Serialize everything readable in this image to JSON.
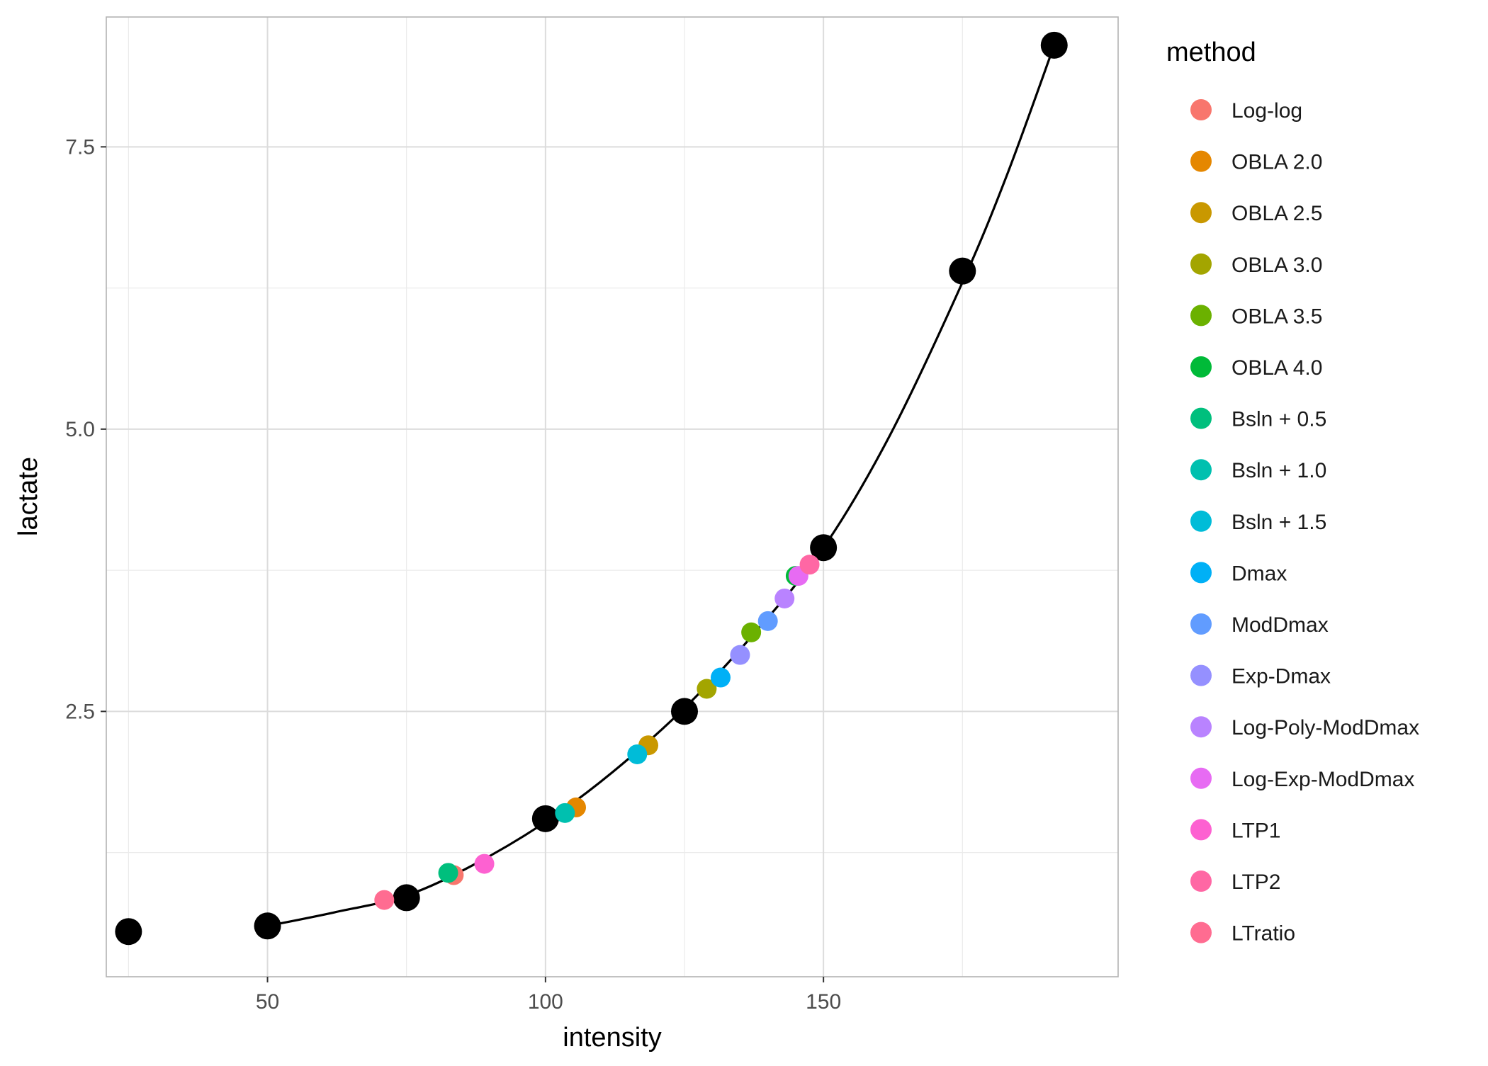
{
  "chart_data": {
    "type": "scatter",
    "xlabel": "intensity",
    "ylabel": "lactate",
    "xlim": [
      21,
      203
    ],
    "ylim": [
      0.15,
      8.65
    ],
    "x_ticks": [
      {
        "value": 50,
        "label": "50"
      },
      {
        "value": 100,
        "label": "100"
      },
      {
        "value": 150,
        "label": "150"
      }
    ],
    "y_ticks": [
      {
        "value": 2.5,
        "label": "2.5"
      },
      {
        "value": 5.0,
        "label": "5.0"
      },
      {
        "value": 7.5,
        "label": "7.5"
      }
    ],
    "grid": true,
    "legend_position": "right",
    "legend_title": "method",
    "observed": {
      "color": "#000000",
      "points": [
        {
          "x": 25,
          "y": 0.55
        },
        {
          "x": 50,
          "y": 0.6
        },
        {
          "x": 75,
          "y": 0.85
        },
        {
          "x": 100,
          "y": 1.55
        },
        {
          "x": 125,
          "y": 2.5
        },
        {
          "x": 150,
          "y": 3.95
        },
        {
          "x": 175,
          "y": 6.4
        },
        {
          "x": 191.5,
          "y": 8.4
        }
      ]
    },
    "fit_curve": {
      "color": "#000000",
      "points": [
        {
          "x": 50,
          "y": 0.6
        },
        {
          "x": 62,
          "y": 0.72
        },
        {
          "x": 75,
          "y": 0.87
        },
        {
          "x": 87,
          "y": 1.14
        },
        {
          "x": 100,
          "y": 1.52
        },
        {
          "x": 112,
          "y": 1.96
        },
        {
          "x": 125,
          "y": 2.53
        },
        {
          "x": 137,
          "y": 3.16
        },
        {
          "x": 150,
          "y": 3.95
        },
        {
          "x": 162,
          "y": 4.95
        },
        {
          "x": 175,
          "y": 6.3
        },
        {
          "x": 183,
          "y": 7.25
        },
        {
          "x": 191.5,
          "y": 8.4
        }
      ]
    },
    "series": [
      {
        "name": "Log-log",
        "color": "#F8766D",
        "x": 83.5,
        "y": 1.05
      },
      {
        "name": "OBLA 2.0",
        "color": "#E58700",
        "x": 105.5,
        "y": 1.65
      },
      {
        "name": "OBLA 2.5",
        "color": "#C99800",
        "x": 118.5,
        "y": 2.2
      },
      {
        "name": "OBLA 3.0",
        "color": "#A3A500",
        "x": 129,
        "y": 2.7
      },
      {
        "name": "OBLA 3.5",
        "color": "#6BB100",
        "x": 137,
        "y": 3.2
      },
      {
        "name": "OBLA 4.0",
        "color": "#00BA38",
        "x": 145,
        "y": 3.7
      },
      {
        "name": "Bsln + 0.5",
        "color": "#00BF7D",
        "x": 82.5,
        "y": 1.07
      },
      {
        "name": "Bsln + 1.0",
        "color": "#00C0AF",
        "x": 103.5,
        "y": 1.6
      },
      {
        "name": "Bsln + 1.5",
        "color": "#00BCD8",
        "x": 116.5,
        "y": 2.12
      },
      {
        "name": "Dmax",
        "color": "#00B0F6",
        "x": 131.5,
        "y": 2.8
      },
      {
        "name": "ModDmax",
        "color": "#619CFF",
        "x": 140,
        "y": 3.3
      },
      {
        "name": "Exp-Dmax",
        "color": "#9590FF",
        "x": 135,
        "y": 3.0
      },
      {
        "name": "Log-Poly-ModDmax",
        "color": "#B983FF",
        "x": 143,
        "y": 3.5
      },
      {
        "name": "Log-Exp-ModDmax",
        "color": "#E76BF3",
        "x": 145.5,
        "y": 3.7
      },
      {
        "name": "LTP1",
        "color": "#FD61D1",
        "x": 89,
        "y": 1.15
      },
      {
        "name": "LTP2",
        "color": "#FF67A4",
        "x": 147.5,
        "y": 3.8
      },
      {
        "name": "LTratio",
        "color": "#FF6C91",
        "x": 71,
        "y": 0.83
      }
    ],
    "legend_colors": [
      "#F8766D",
      "#E58700",
      "#C99800",
      "#A3A500",
      "#6BB100",
      "#00BA38",
      "#00BF7D",
      "#00C0AF",
      "#00BCD8",
      "#00B0F6",
      "#619CFF",
      "#9590FF",
      "#B983FF",
      "#E76BF3",
      "#FD61D1",
      "#FF61C3",
      "#FF67A4"
    ]
  }
}
